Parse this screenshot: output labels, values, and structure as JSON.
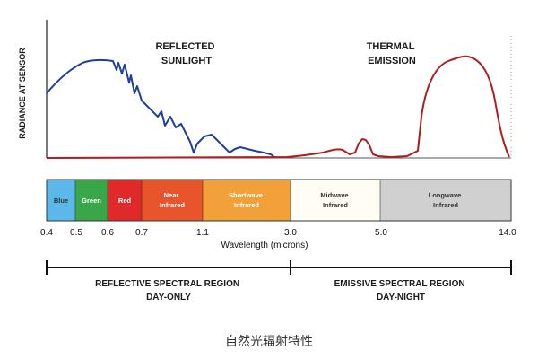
{
  "diagram": {
    "y_axis_label": "RADIANCE AT SENSOR",
    "curves": [
      {
        "name": "reflected",
        "label_lines": [
          "REFLECTED",
          "SUNLIGHT"
        ],
        "color": "#1f3f9b"
      },
      {
        "name": "thermal",
        "label_lines": [
          "THERMAL",
          "EMISSION"
        ],
        "color": "#b01d1d"
      }
    ],
    "bands": [
      {
        "name": "blue",
        "label_lines": [
          "Blue"
        ],
        "color": "#5bb8e8",
        "text": "dark"
      },
      {
        "name": "green",
        "label_lines": [
          "Green"
        ],
        "color": "#3aa64a",
        "text": "light"
      },
      {
        "name": "red",
        "label_lines": [
          "Red"
        ],
        "color": "#e02a2a",
        "text": "light"
      },
      {
        "name": "near-infrared",
        "label_lines": [
          "Near",
          "Infrared"
        ],
        "color": "#e8542c",
        "text": "light"
      },
      {
        "name": "shortwave-infrared",
        "label_lines": [
          "Shortwave",
          "Infrared"
        ],
        "color": "#f2a13a",
        "text": "light"
      },
      {
        "name": "midwave-infrared",
        "label_lines": [
          "Midwave",
          "Infrared"
        ],
        "color": "#fffdf4",
        "text": "dark"
      },
      {
        "name": "longwave-infrared",
        "label_lines": [
          "Longwave",
          "Infrared"
        ],
        "color": "#d0d0d0",
        "text": "dark"
      }
    ],
    "wavelength_ticks": [
      "0.4",
      "0.5",
      "0.6",
      "0.7",
      "1.1",
      "3.0",
      "5.0",
      "14.0"
    ],
    "x_axis_title": "Wavelength (microns)",
    "regions": [
      {
        "name": "reflective",
        "label_lines": [
          "REFLECTIVE SPECTRAL REGION",
          "DAY-ONLY"
        ]
      },
      {
        "name": "emissive",
        "label_lines": [
          "EMISSIVE SPECTRAL REGION",
          "DAY-NIGHT"
        ]
      }
    ]
  },
  "caption": "自然光辐射特性"
}
